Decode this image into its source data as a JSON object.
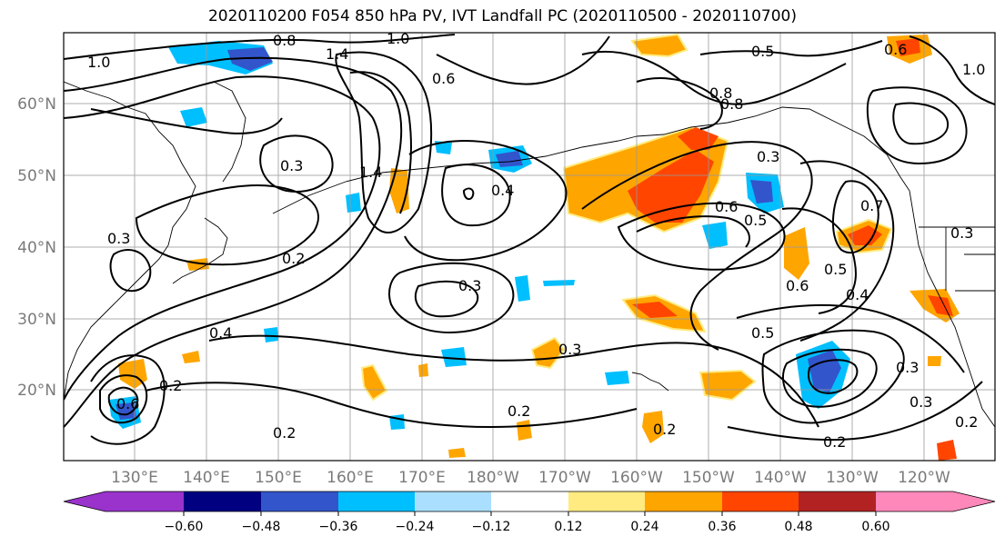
{
  "title": "2020110200 F054 850 hPa PV, IVT Landfall PC (2020110500 - 2020110700)",
  "lat_labels": [
    "60°N",
    "50°N",
    "40°N",
    "30°N",
    "20°N"
  ],
  "lon_labels": [
    "130°E",
    "140°E",
    "150°E",
    "160°E",
    "170°E",
    "180°W",
    "170°W",
    "160°W",
    "150°W",
    "140°W",
    "130°W",
    "120°W"
  ],
  "colorbar": {
    "colors": [
      "#9933cc",
      "#000080",
      "#3355cc",
      "#00bfff",
      "#aadfff",
      "#ffffff",
      "#ffeb80",
      "#ffa500",
      "#ff4500",
      "#b22222",
      "#ff88bb"
    ],
    "tick_labels": [
      "−0.60",
      "−0.48",
      "−0.36",
      "−0.24",
      "−0.12",
      "0.12",
      "0.24",
      "0.36",
      "0.48",
      "0.60"
    ]
  },
  "contour_labels": [
    "1.0",
    "0.8",
    "1.0",
    "1.4",
    "0.6",
    "0.5",
    "0.6",
    "1.0",
    "0.8",
    "0.8",
    "0.3",
    "0.2",
    "0.3",
    "0.4",
    "0.3",
    "0.6",
    "0.5",
    "0.3",
    "0.7",
    "0.5",
    "0.6",
    "0.4",
    "0.3",
    "0.5",
    "0.3",
    "0.4",
    "0.2",
    "0.2",
    "0.6",
    "0.2",
    "0.2",
    "0.3",
    "0.2",
    "0.3",
    "0.2",
    "1.4"
  ]
}
